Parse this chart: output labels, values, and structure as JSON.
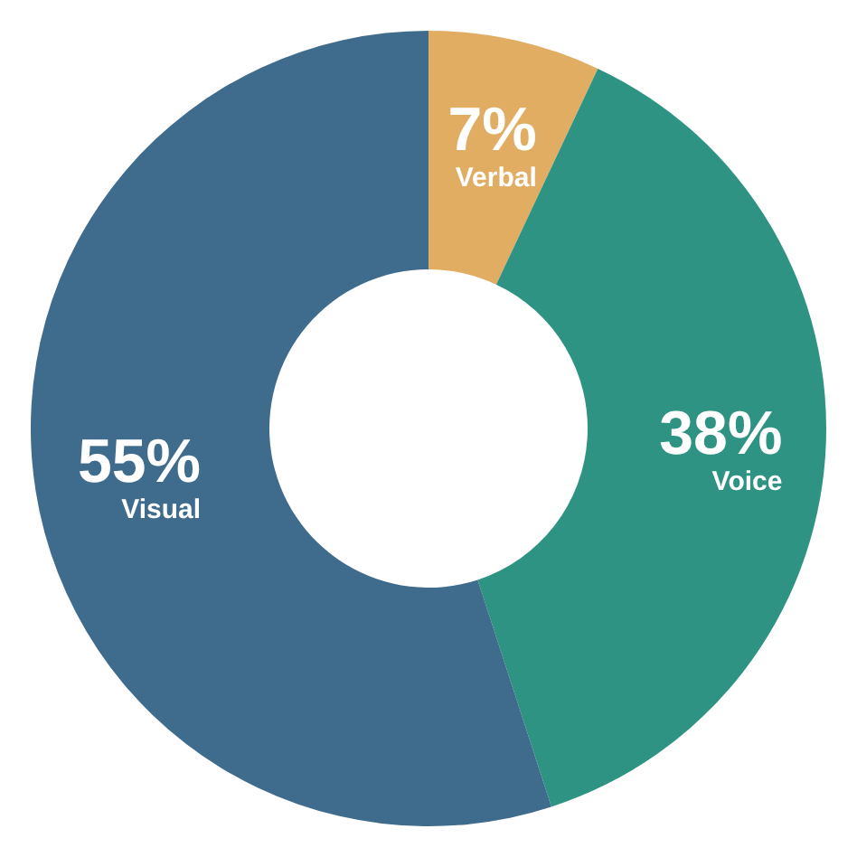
{
  "chart_data": {
    "type": "donut",
    "categories": [
      "Verbal",
      "Voice",
      "Visual"
    ],
    "values": [
      7,
      38,
      55
    ],
    "colors": [
      "#e0ad62",
      "#2e9383",
      "#3f6b8c"
    ],
    "value_labels": [
      "7%",
      "38%",
      "55%"
    ]
  }
}
